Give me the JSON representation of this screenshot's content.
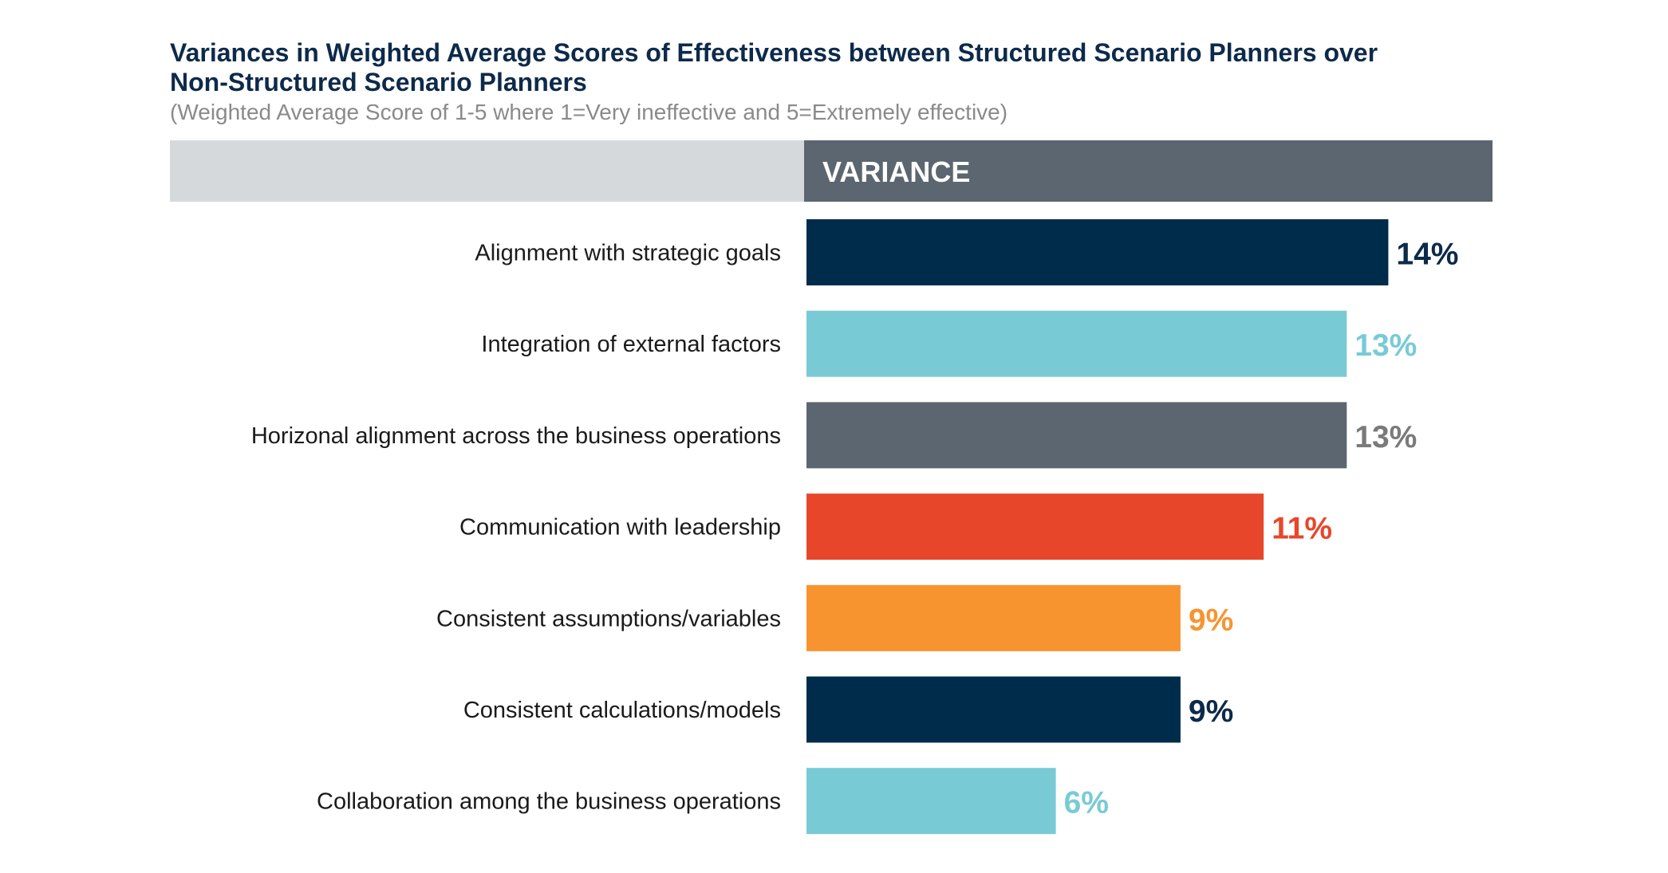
{
  "title": {
    "line1": "Variances in Weighted Average Scores of Effectiveness between Structured Scenario Planners over",
    "line2": "Non-Structured Scenario Planners"
  },
  "subtitle": "(Weighted Average Score of 1-5 where 1=Very ineffective and 5=Extremely effective)",
  "chart_data": {
    "type": "bar",
    "orientation": "horizontal",
    "header": "VARIANCE",
    "categories": [
      "Alignment with strategic goals",
      "Integration of external factors",
      "Horizonal alignment across the business operations",
      "Communication with leadership",
      "Consistent assumptions/variables",
      "Consistent calculations/models",
      "Collaboration among the business operations"
    ],
    "values": [
      14,
      13,
      13,
      11,
      9,
      9,
      6
    ],
    "value_labels": [
      "14%",
      "13%",
      "13%",
      "11%",
      "9%",
      "9%",
      "6%"
    ],
    "unit": "%",
    "bar_colors": [
      "#002c4c",
      "#78cbd5",
      "#5c6670",
      "#e8462b",
      "#f79430",
      "#002c4c",
      "#78cbd5"
    ],
    "label_colors": [
      "#0d2a4a",
      "#78cbd5",
      "#7a7a7a",
      "#e8462b",
      "#f79430",
      "#0d2a4a",
      "#78cbd5"
    ],
    "header_colors": {
      "left": "#d6d9dc",
      "right": "#5c6670",
      "text": "#ffffff"
    },
    "xlim": [
      0,
      14
    ]
  }
}
